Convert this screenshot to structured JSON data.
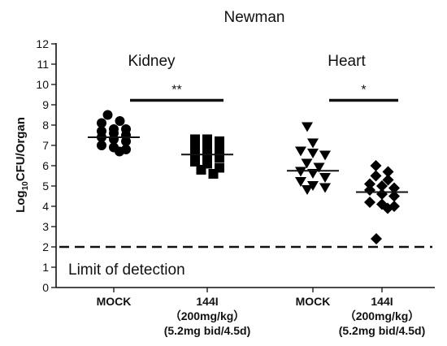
{
  "chart_data": {
    "type": "scatter",
    "title": "Newman",
    "ylabel": {
      "main": "Log",
      "sub": "10",
      "rest": "CFU/Organ"
    },
    "ylim": [
      0,
      12
    ],
    "yticks": [
      0,
      1,
      2,
      3,
      4,
      5,
      6,
      7,
      8,
      9,
      10,
      11,
      12
    ],
    "groups": [
      {
        "label": "Kidney",
        "x_from": 0,
        "x_to": 1
      },
      {
        "label": "Heart",
        "x_from": 2,
        "x_to": 3
      }
    ],
    "categories": [
      {
        "lines": [
          "MOCK"
        ]
      },
      {
        "lines": [
          "144I",
          "（200mg/kg）",
          "(5.2mg bid/4.5d)"
        ]
      },
      {
        "lines": [
          "MOCK"
        ]
      },
      {
        "lines": [
          "144I",
          "（200mg/kg）",
          "(5.2mg bid/4.5d)"
        ]
      }
    ],
    "series": [
      {
        "marker": "circle",
        "mean": 7.4,
        "values": [
          8.5,
          8.2,
          8.1,
          7.8,
          7.8,
          7.7,
          7.6,
          7.5,
          7.4,
          7.3,
          7.2,
          7.0,
          6.9,
          6.8,
          6.7
        ]
      },
      {
        "marker": "square",
        "mean": 6.55,
        "values": [
          7.3,
          7.3,
          7.2,
          7.0,
          6.9,
          6.8,
          6.6,
          6.5,
          6.4,
          6.2,
          6.1,
          5.9,
          5.8,
          5.6
        ]
      },
      {
        "marker": "triangle-down",
        "mean": 5.75,
        "values": [
          7.9,
          7.1,
          6.7,
          6.6,
          6.5,
          6.1,
          5.9,
          5.7,
          5.6,
          5.4,
          5.2,
          5.0,
          4.9,
          4.8
        ]
      },
      {
        "marker": "diamond",
        "mean": 4.7,
        "values": [
          6.0,
          5.7,
          5.5,
          5.3,
          5.1,
          5.0,
          4.9,
          4.8,
          4.6,
          4.5,
          4.2,
          4.1,
          4.0,
          3.9,
          2.4
        ]
      }
    ],
    "significance": [
      {
        "x_from": 0,
        "x_to": 1,
        "y": 9.3,
        "label": "**"
      },
      {
        "x_from": 2,
        "x_to": 3,
        "y": 9.3,
        "label": "*"
      }
    ],
    "limit_of_detection": {
      "y": 2,
      "label": "Limit of detection"
    }
  }
}
